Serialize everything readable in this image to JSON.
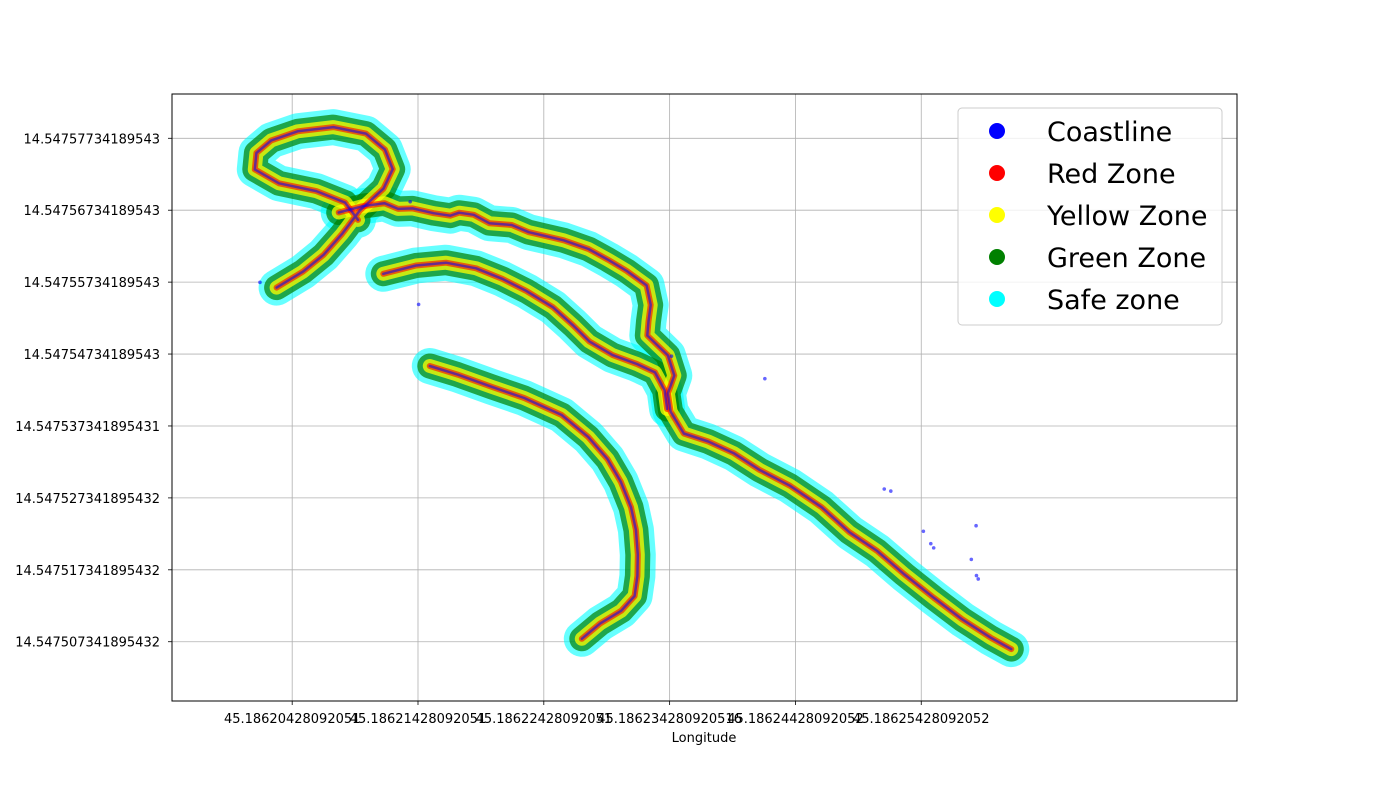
{
  "chart_data": {
    "type": "scatter",
    "title": "",
    "xlabel": "Longitude",
    "ylabel": "",
    "grid": true,
    "legend_placement": "top-right",
    "xlim": [
      45.186194728,
      45.186279378
    ],
    "ylim": [
      14.5474991,
      14.5475835
    ],
    "xticks": [
      45.18620428092051,
      45.18621428092051,
      45.18622428092051,
      45.186234280920516,
      45.18624428092052,
      45.18625428092052
    ],
    "xtick_labels": [
      "45.18620428092051",
      "45.18621428092051",
      "45.18622428092051",
      "45.186234280920516",
      "45.18624428092052",
      "45.18625428092052"
    ],
    "yticks": [
      14.54757734189543,
      14.54756734189543,
      14.54755734189543,
      14.54754734189543,
      14.547537341895431,
      14.547527341895432,
      14.547517341895432,
      14.547507341895432
    ],
    "ytick_labels": [
      "14.54757734189543",
      "14.54756734189543",
      "14.54755734189543",
      "14.54754734189543",
      "14.547537341895431",
      "14.547527341895432",
      "14.547517341895432",
      "14.547507341895432"
    ],
    "series": [
      {
        "name": "Coastline",
        "color": "#0000ff"
      },
      {
        "name": "Red Zone",
        "color": "#ff0000"
      },
      {
        "name": "Yellow Zone",
        "color": "#ffff00"
      },
      {
        "name": "Green Zone",
        "color": "#008000"
      },
      {
        "name": "Safe zone",
        "color": "#00ffff"
      }
    ],
    "coastline_paths": [
      [
        [
          45.18620798,
          14.54756702
        ],
        [
          45.18620984,
          14.54756789
        ],
        [
          45.18621161,
          14.54756832
        ],
        [
          45.1862127,
          14.54756752
        ],
        [
          45.18621385,
          14.5475676
        ],
        [
          45.18621552,
          14.54756692
        ],
        [
          45.18621685,
          14.54756658
        ],
        [
          45.18621755,
          14.54756699
        ],
        [
          45.18621872,
          14.54756671
        ],
        [
          45.18621995,
          14.54756554
        ],
        [
          45.18622174,
          14.54756529
        ],
        [
          45.18622309,
          14.54756429
        ],
        [
          45.18622457,
          14.54756368
        ],
        [
          45.18622586,
          14.54756316
        ],
        [
          45.18622783,
          14.54756195
        ],
        [
          45.18622937,
          14.54756048
        ],
        [
          45.18623085,
          14.54755891
        ],
        [
          45.18623245,
          14.54755688
        ],
        [
          45.18623278,
          14.54755417
        ],
        [
          45.1862326,
          14.54755189
        ],
        [
          45.18623251,
          14.54754992
        ],
        [
          45.18623414,
          14.54754716
        ],
        [
          45.18623465,
          14.54754436
        ],
        [
          45.18623414,
          14.54754188
        ],
        [
          45.18623436,
          14.54753934
        ],
        [
          45.18623541,
          14.54753629
        ],
        [
          45.18623735,
          14.54753518
        ],
        [
          45.18623938,
          14.54753355
        ],
        [
          45.18624142,
          14.54753125
        ],
        [
          45.18624384,
          14.54752903
        ],
        [
          45.18624636,
          14.54752605
        ],
        [
          45.18624858,
          14.54752255
        ],
        [
          45.18625077,
          14.54751997
        ],
        [
          45.18625294,
          14.5475167
        ],
        [
          45.18625528,
          14.54751345
        ],
        [
          45.18625752,
          14.54751047
        ],
        [
          45.1862598,
          14.5475079
        ],
        [
          45.18626144,
          14.54750631
        ]
      ],
      [
        [
          45.18620304,
          14.54755658
        ],
        [
          45.18620514,
          14.5475588
        ],
        [
          45.18620678,
          14.54756114
        ],
        [
          45.18620823,
          14.54756402
        ],
        [
          45.18620966,
          14.54756732
        ],
        [
          45.18621154,
          14.54757034
        ],
        [
          45.18621227,
          14.54757304
        ],
        [
          45.18621165,
          14.54757578
        ],
        [
          45.18621014,
          14.547578
        ],
        [
          45.18620756,
          14.5475789
        ],
        [
          45.18620472,
          14.54757832
        ],
        [
          45.18620261,
          14.54757705
        ],
        [
          45.18620144,
          14.54757529
        ],
        [
          45.18620131,
          14.54757302
        ],
        [
          45.18620323,
          14.54757108
        ],
        [
          45.1862062,
          14.54757
        ],
        [
          45.18620848,
          14.54756841
        ],
        [
          45.18620951,
          14.547566
        ]
      ],
      [
        [
          45.18621152,
          14.5475585
        ],
        [
          45.18621412,
          14.54755965
        ],
        [
          45.18621651,
          14.54756005
        ],
        [
          45.1862189,
          14.54755926
        ],
        [
          45.18622097,
          14.5475578
        ],
        [
          45.18622289,
          14.54755612
        ],
        [
          45.186225,
          14.54755386
        ],
        [
          45.18622657,
          14.5475514
        ],
        [
          45.1862279,
          14.5475491
        ],
        [
          45.18622975,
          14.54754719
        ],
        [
          45.18623168,
          14.54754596
        ],
        [
          45.18623312,
          14.54754479
        ],
        [
          45.18623388,
          14.54754231
        ],
        [
          45.18623408,
          14.5475397
        ]
      ],
      [
        [
          45.18621522,
          14.54754568
        ],
        [
          45.18621743,
          14.54754449
        ],
        [
          45.18622014,
          14.54754279
        ],
        [
          45.18622272,
          14.54754123
        ],
        [
          45.1862257,
          14.54753887
        ],
        [
          45.18622782,
          14.5475358
        ],
        [
          45.18622934,
          14.54753273
        ],
        [
          45.1862304,
          14.54752958
        ],
        [
          45.18623121,
          14.54752605
        ],
        [
          45.1862316,
          14.5475229
        ],
        [
          45.18623175,
          14.54751944
        ],
        [
          45.18623172,
          14.54751646
        ],
        [
          45.1862315,
          14.5475137
        ],
        [
          45.18623044,
          14.54751166
        ],
        [
          45.18622876,
          14.54750989
        ],
        [
          45.1862273,
          14.54750775
        ]
      ]
    ],
    "islands": [
      [
        45.18620172,
        14.54755731
      ],
      [
        45.18621366,
        14.54756851
      ],
      [
        45.18621433,
        14.54755424
      ],
      [
        45.18623443,
        14.54754705
      ],
      [
        45.18624185,
        14.54754392
      ],
      [
        45.18625134,
        14.54752857
      ],
      [
        45.18625186,
        14.54752829
      ],
      [
        45.18625445,
        14.5475227
      ],
      [
        45.18625504,
        14.54752098
      ],
      [
        45.18625527,
        14.54752039
      ],
      [
        45.18625826,
        14.54751879
      ],
      [
        45.18625867,
        14.54751654
      ],
      [
        45.18625864,
        14.54752347
      ],
      [
        45.18625881,
        14.54751607
      ]
    ]
  }
}
